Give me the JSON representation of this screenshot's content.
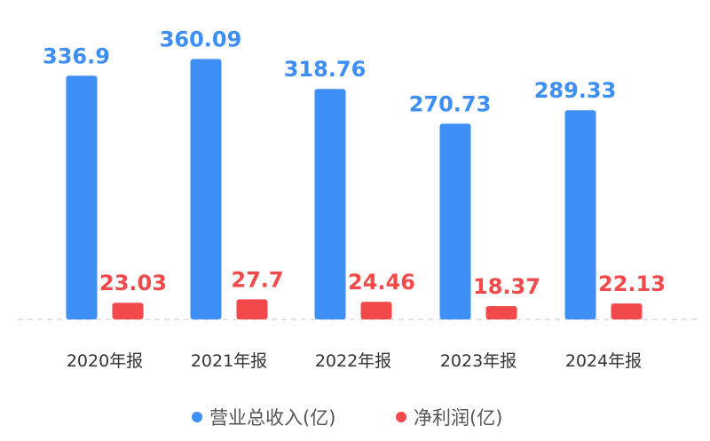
{
  "chart_data": {
    "type": "bar",
    "categories": [
      "2020年报",
      "2021年报",
      "2022年报",
      "2023年报",
      "2024年报"
    ],
    "series": [
      {
        "name": "营业总收入(亿)",
        "color": "#3d8ff5",
        "values": [
          336.9,
          360.09,
          318.76,
          270.73,
          289.33
        ],
        "labels": [
          "336.9",
          "360.09",
          "318.76",
          "270.73",
          "289.33"
        ]
      },
      {
        "name": "净利润(亿)",
        "color": "#f24a4a",
        "values": [
          23.03,
          27.7,
          24.46,
          18.37,
          22.13
        ],
        "labels": [
          "23.03",
          "27.7",
          "24.46",
          "18.37",
          "22.13"
        ]
      }
    ],
    "ylim": [
      0,
      400
    ],
    "grid": false,
    "legend": "bottom-center",
    "baseline": "dashed"
  }
}
